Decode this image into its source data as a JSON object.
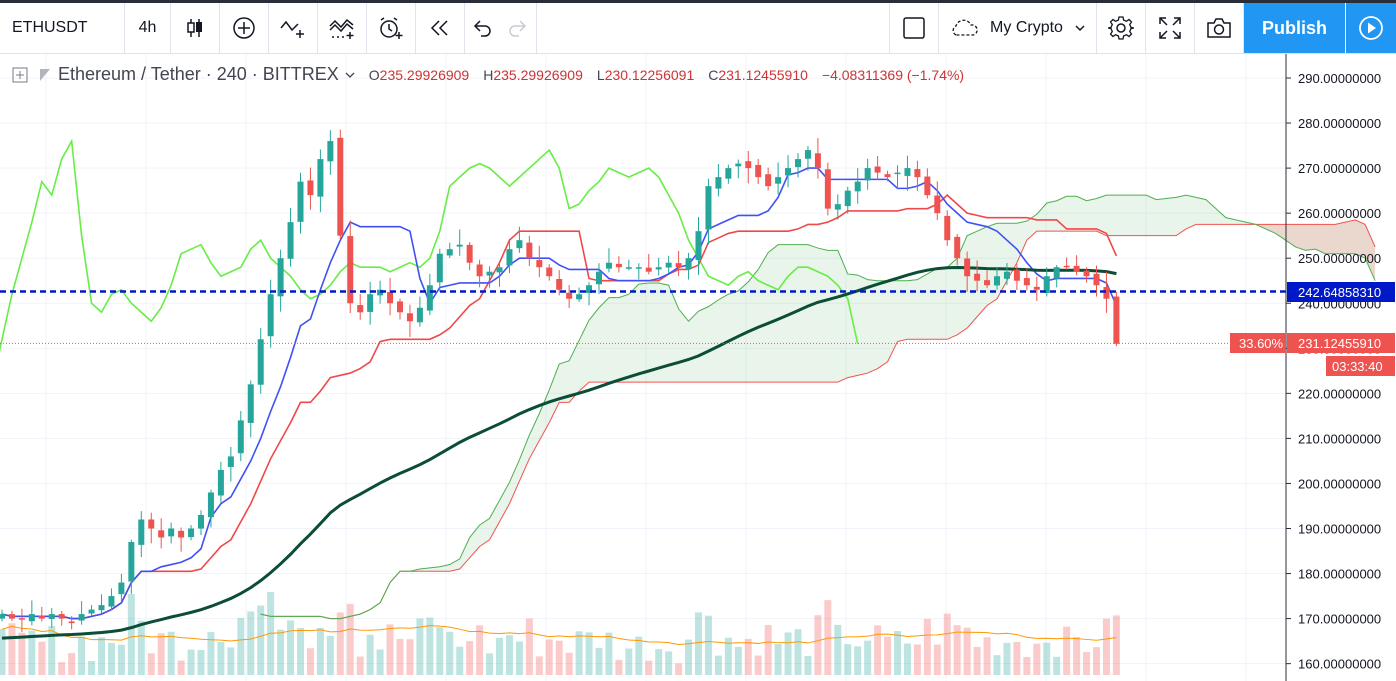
{
  "toolbar": {
    "symbol": "ETHUSDT",
    "interval": "4h",
    "layout_name": "My Crypto",
    "publish_label": "Publish"
  },
  "legend": {
    "title": "Ethereum / Tether · 240 · BITTREX",
    "open_label": "O",
    "open": "235.29926909",
    "high_label": "H",
    "high": "235.29926909",
    "low_label": "L",
    "low": "230.12256091",
    "close_label": "C",
    "close": "231.12455910",
    "change": "−4.08311369 (−1.74%)"
  },
  "colors": {
    "up": "#26a69a",
    "down": "#ef5350",
    "accent": "#2196f3",
    "tenkan": "#3f51f5",
    "kijun": "#f04848",
    "chikou": "#66ee44",
    "span_a": "#4caf50",
    "span_b": "#ef5350",
    "ma200": "#0b4d36",
    "hline": "#0019c8"
  },
  "chart_data": {
    "type": "candlestick",
    "y_axis_ticks": [
      "290.00000000",
      "280.00000000",
      "270.00000000",
      "260.00000000",
      "250.00000000",
      "240.00000000",
      "230.00000000",
      "220.00000000",
      "210.00000000",
      "200.00000000",
      "190.00000000",
      "180.00000000",
      "170.00000000",
      "160.00000000"
    ],
    "y_range": [
      158,
      295
    ],
    "horizontal_line": {
      "value": 242.6,
      "label": "242.64858310"
    },
    "last_price": {
      "value": 231.1,
      "label": "231.12455910",
      "percent": "33.60%",
      "countdown": "03:33:40"
    },
    "closes": [
      171,
      170,
      170,
      171,
      170,
      171,
      170,
      169,
      171,
      172,
      173,
      175,
      178,
      187,
      192,
      190,
      188,
      190,
      188,
      190,
      193,
      198,
      203,
      206,
      214,
      222,
      232,
      242,
      250,
      258,
      267,
      264,
      272,
      276,
      255,
      240,
      238,
      242,
      243,
      240,
      238,
      236,
      239,
      244,
      251,
      252,
      253,
      249,
      246,
      247,
      248,
      252,
      254,
      250,
      248,
      246,
      243,
      241,
      242,
      244,
      247,
      249,
      248,
      248,
      248,
      247,
      248,
      249,
      248,
      250,
      256,
      266,
      268,
      270,
      271,
      270,
      268,
      266,
      268,
      270,
      272,
      274,
      270,
      261,
      262,
      265,
      267,
      270,
      269,
      268,
      269,
      270,
      268,
      264,
      260,
      254,
      250,
      246,
      245,
      244,
      246,
      247,
      245,
      244,
      243,
      246,
      248,
      248,
      247,
      246,
      244,
      241,
      231
    ]
  }
}
